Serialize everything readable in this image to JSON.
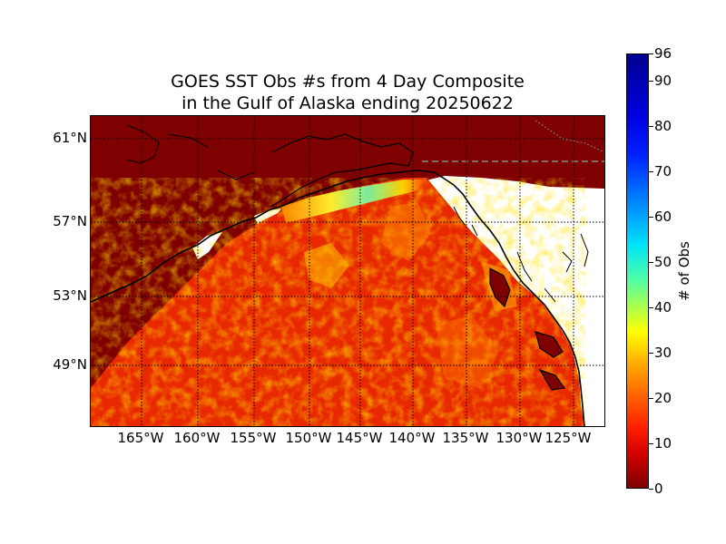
{
  "title": {
    "line1": "GOES SST Obs #s from 4 Day Composite",
    "line2": "in the Gulf of Alaska ending 20250622"
  },
  "map": {
    "lat_labels": [
      "61°N",
      "57°N",
      "53°N",
      "49°N"
    ],
    "lon_labels": [
      "165°W",
      "160°W",
      "155°W",
      "150°W",
      "145°W",
      "140°W",
      "135°W",
      "130°W",
      "125°W"
    ],
    "colors": {
      "land_fill": "#7f0000",
      "no_data": "#ffffff",
      "coastline": "#000000",
      "gridline": "#000000",
      "border_line": "#888888"
    }
  },
  "colorbar": {
    "label": "# of Obs",
    "ticks": [
      "96",
      "90",
      "80",
      "70",
      "60",
      "50",
      "40",
      "30",
      "20",
      "10",
      "0"
    ],
    "min": 0,
    "max": 96,
    "colormap": "jet"
  }
}
